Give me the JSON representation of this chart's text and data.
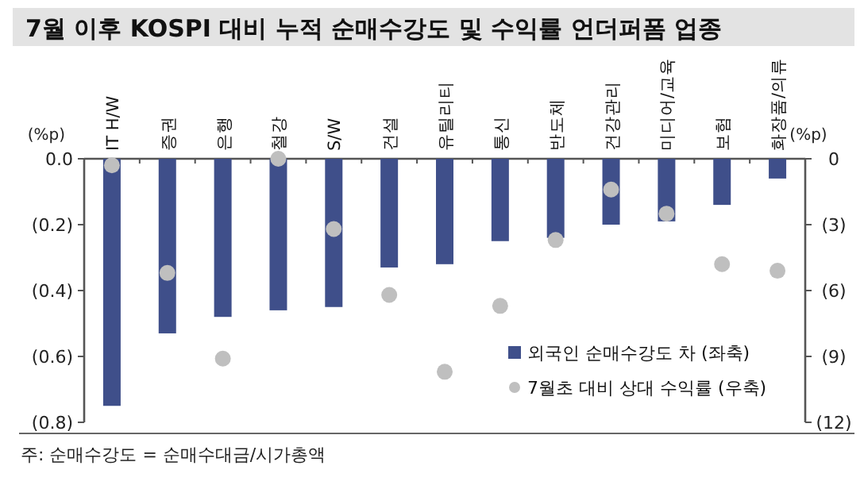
{
  "chart_data": {
    "type": "bar",
    "title": "7월 이후 KOSPI 대비 누적 순매수강도 및 수익률 언더퍼폼 업종",
    "categories": [
      "IT H/W",
      "증권",
      "은행",
      "철강",
      "S/W",
      "건설",
      "유틸리티",
      "통신",
      "반도체",
      "건강관리",
      "미디어/교육",
      "보험",
      "화장품/의류"
    ],
    "series": [
      {
        "name": "외국인 순매수강도 차 (좌축)",
        "color": "#3f4f8a",
        "values": [
          -0.75,
          -0.53,
          -0.48,
          -0.46,
          -0.45,
          -0.33,
          -0.32,
          -0.25,
          -0.24,
          -0.2,
          -0.19,
          -0.14,
          -0.06
        ]
      },
      {
        "name": "7월초 대비 상대 수익률 (우축)",
        "type": "scatter",
        "axis": "y2",
        "marker": "circle",
        "color": "#bfbfbf",
        "values": [
          -0.3,
          -5.2,
          -9.1,
          0,
          -3.2,
          -6.2,
          -9.7,
          -6.7,
          -3.7,
          -1.4,
          -2.5,
          -4.8,
          -5.1
        ]
      }
    ],
    "ylabel": "(%p)",
    "y2label": "(%p)",
    "ylim": [
      -0.8,
      0
    ],
    "yticks": [
      {
        "value": 0,
        "label": "0.0"
      },
      {
        "value": -0.2,
        "label": "(0.2)"
      },
      {
        "value": -0.4,
        "label": "(0.4)"
      },
      {
        "value": -0.6,
        "label": "(0.6)"
      },
      {
        "value": -0.8,
        "label": "(0.8)"
      }
    ],
    "y2lim": [
      -12,
      0
    ],
    "y2ticks": [
      {
        "value": 0,
        "label": "0"
      },
      {
        "value": -3,
        "label": "(3)"
      },
      {
        "value": -6,
        "label": "(6)"
      },
      {
        "value": -9,
        "label": "(9)"
      },
      {
        "value": -12,
        "label": "(12)"
      }
    ],
    "legend": "bottom right",
    "grid": false,
    "annotations": [
      "주: 순매수강도 = 순매수대금/시가총액"
    ]
  }
}
